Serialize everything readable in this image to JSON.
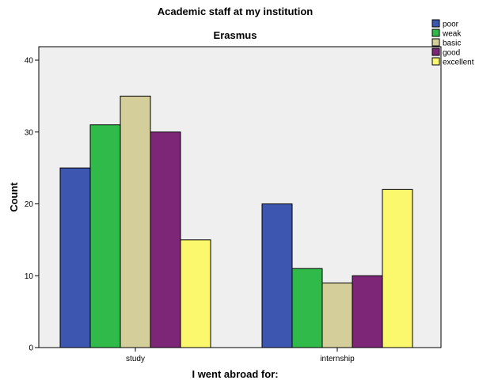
{
  "chart_data": {
    "type": "bar",
    "title": "Academic staff at my institution",
    "subtitle": "Erasmus",
    "xlabel": "I went abroad for:",
    "ylabel": "Count",
    "categories": [
      "study",
      "internship"
    ],
    "series": [
      {
        "name": "poor",
        "color": "#3d56b0",
        "values": [
          25,
          20
        ]
      },
      {
        "name": "weak",
        "color": "#2fba4a",
        "values": [
          31,
          11
        ]
      },
      {
        "name": "basic",
        "color": "#d3ce9a",
        "values": [
          35,
          9
        ]
      },
      {
        "name": "good",
        "color": "#7d2677",
        "values": [
          30,
          10
        ]
      },
      {
        "name": "excellent",
        "color": "#fbf86e",
        "values": [
          15,
          22
        ]
      }
    ],
    "ylim": [
      0,
      40
    ],
    "yticks": [
      "0",
      "10",
      "20",
      "30",
      "40"
    ],
    "legend_position": "top-right",
    "plot_background": "#efefef",
    "grid": false
  }
}
